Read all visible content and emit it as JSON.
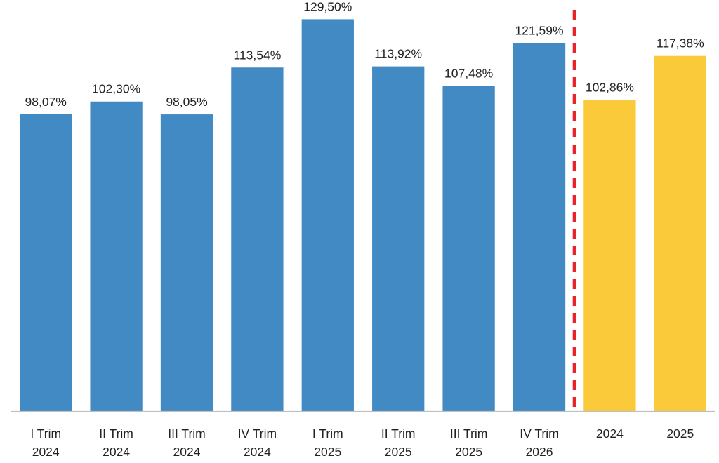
{
  "chart_data": {
    "type": "bar",
    "categories": [
      [
        "I Trim",
        "2024"
      ],
      [
        "II Trim",
        "2024"
      ],
      [
        "III Trim",
        "2024"
      ],
      [
        "IV Trim",
        "2024"
      ],
      [
        "I Trim",
        "2025"
      ],
      [
        "II Trim",
        "2025"
      ],
      [
        "III Trim",
        "2025"
      ],
      [
        "IV Trim",
        "2026"
      ],
      [
        "2024"
      ],
      [
        "2025"
      ]
    ],
    "values": [
      98.07,
      102.3,
      98.05,
      113.54,
      129.5,
      113.92,
      107.48,
      121.59,
      102.86,
      117.38
    ],
    "value_labels": [
      "98,07%",
      "102,30%",
      "98,05%",
      "113,54%",
      "129,50%",
      "113,92%",
      "107,48%",
      "121,59%",
      "102,86%",
      "117,38%"
    ],
    "bar_colors": [
      "#418ac4",
      "#418ac4",
      "#418ac4",
      "#418ac4",
      "#418ac4",
      "#418ac4",
      "#418ac4",
      "#418ac4",
      "#fbca3a",
      "#fbca3a"
    ],
    "separator": {
      "after_index": 7,
      "style": "dashed",
      "color": "#e8232a"
    },
    "ylim": [
      0,
      134
    ],
    "grid": false,
    "legend": "none",
    "title": "",
    "xlabel": "",
    "ylabel": ""
  }
}
